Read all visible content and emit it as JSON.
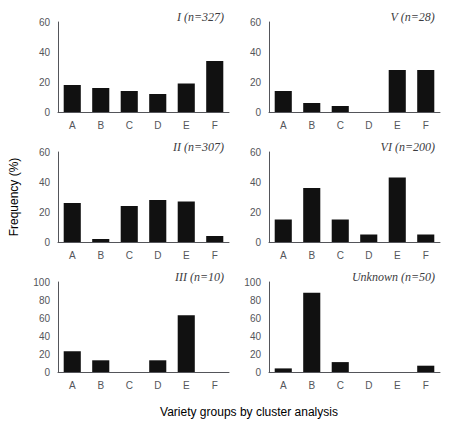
{
  "chart_data": [
    {
      "type": "bar",
      "title": "I (n=327)",
      "xlabel": "Variety groups by cluster analysis",
      "ylabel": "Frequency (%)",
      "categories": [
        "A",
        "B",
        "C",
        "D",
        "E",
        "F"
      ],
      "values": [
        18,
        16,
        14,
        12,
        19,
        34
      ],
      "color": "#111111",
      "ylim": [
        0,
        60
      ],
      "yticks": [
        0,
        20,
        40,
        60
      ],
      "grid": false
    },
    {
      "type": "bar",
      "title": "V (n=28)",
      "categories": [
        "A",
        "B",
        "C",
        "D",
        "E",
        "F"
      ],
      "values": [
        14,
        6,
        4,
        0,
        28,
        28
      ],
      "color": "#111111",
      "ylim": [
        0,
        60
      ],
      "yticks": [
        0,
        20,
        40,
        60
      ],
      "grid": false
    },
    {
      "type": "bar",
      "title": "II (n=307)",
      "categories": [
        "A",
        "B",
        "C",
        "D",
        "E",
        "F"
      ],
      "values": [
        26,
        2,
        24,
        28,
        27,
        4
      ],
      "color": "#111111",
      "ylim": [
        0,
        60
      ],
      "yticks": [
        0,
        20,
        40,
        60
      ],
      "grid": false
    },
    {
      "type": "bar",
      "title": "VI (n=200)",
      "categories": [
        "A",
        "B",
        "C",
        "D",
        "E",
        "F"
      ],
      "values": [
        15,
        36,
        15,
        5,
        43,
        5
      ],
      "color": "#111111",
      "ylim": [
        0,
        60
      ],
      "yticks": [
        0,
        20,
        40,
        60
      ],
      "grid": false
    },
    {
      "type": "bar",
      "title": "III (n=10)",
      "categories": [
        "A",
        "B",
        "C",
        "D",
        "E",
        "F"
      ],
      "values": [
        23,
        13,
        0,
        13,
        63,
        0
      ],
      "color": "#111111",
      "ylim": [
        0,
        100
      ],
      "yticks": [
        0,
        20,
        40,
        60,
        80,
        100
      ],
      "grid": false
    },
    {
      "type": "bar",
      "title": "Unknown (n=50)",
      "categories": [
        "A",
        "B",
        "C",
        "D",
        "E",
        "F"
      ],
      "values": [
        4,
        88,
        11,
        0,
        0,
        7
      ],
      "color": "#111111",
      "ylim": [
        0,
        100
      ],
      "yticks": [
        0,
        20,
        40,
        60,
        80,
        100
      ],
      "grid": false
    }
  ]
}
